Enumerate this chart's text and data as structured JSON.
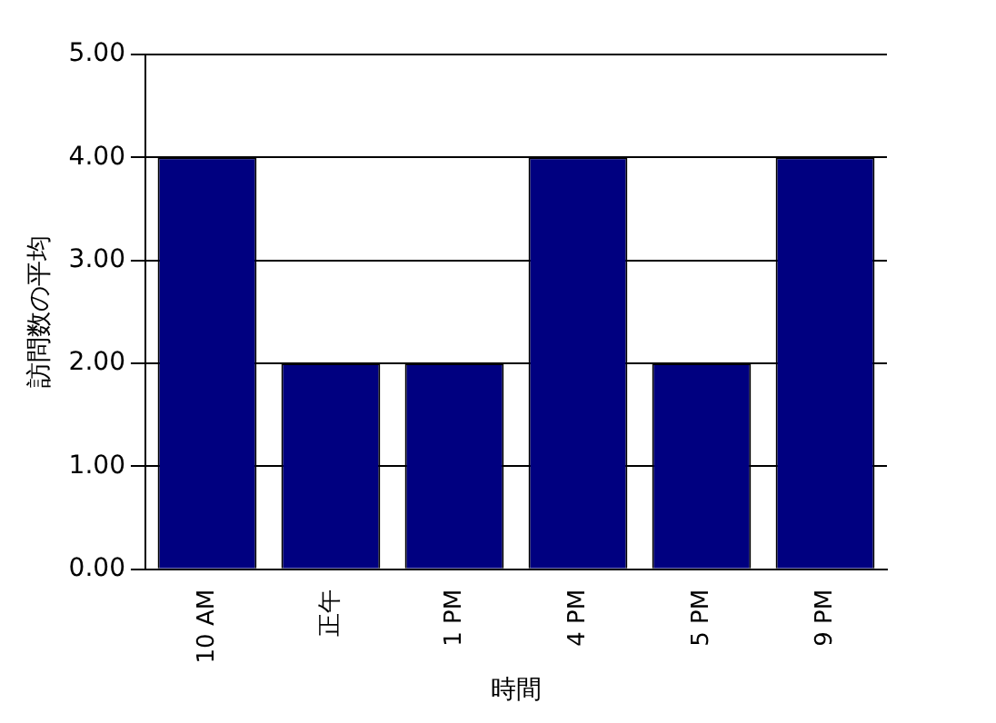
{
  "chart_data": {
    "type": "bar",
    "xlabel": "時間",
    "ylabel": "訪問数の平均",
    "categories": [
      "10 AM",
      "正午",
      "1 PM",
      "4 PM",
      "5 PM",
      "9 PM"
    ],
    "values": [
      4,
      2,
      2,
      4,
      2,
      4
    ],
    "color": "#000080",
    "ylim": [
      0,
      5
    ],
    "yticks": [
      {
        "value": 0,
        "label": "0.00"
      },
      {
        "value": 1,
        "label": "1.00"
      },
      {
        "value": 2,
        "label": "2.00"
      },
      {
        "value": 3,
        "label": "3.00"
      },
      {
        "value": 4,
        "label": "4.00"
      },
      {
        "value": 5,
        "label": "5.00"
      }
    ],
    "grid": "y",
    "legend": false
  }
}
